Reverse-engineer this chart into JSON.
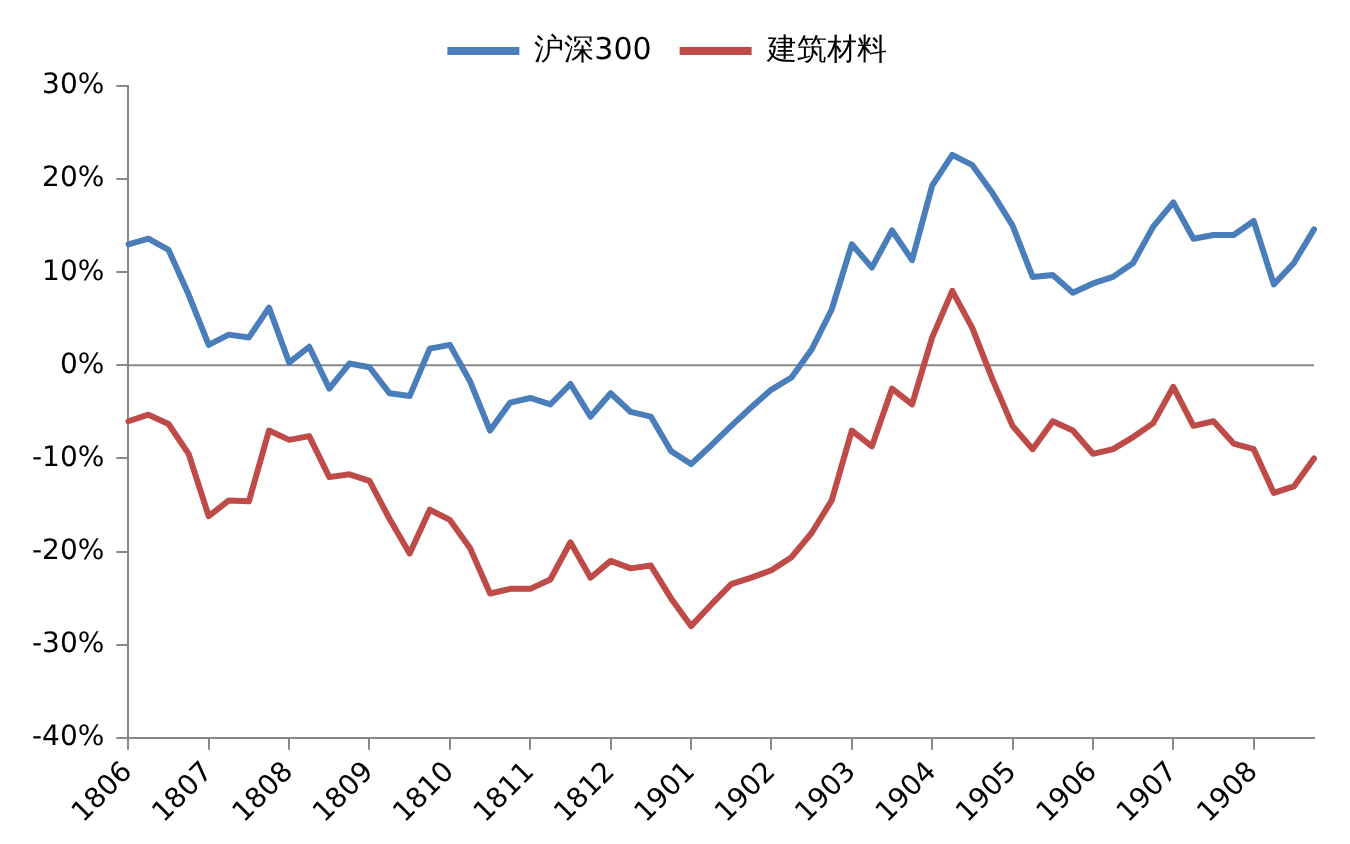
{
  "chart_data": {
    "type": "line",
    "categories": [
      "1806",
      null,
      null,
      null,
      "1807",
      null,
      null,
      null,
      "1808",
      null,
      null,
      null,
      "1809",
      null,
      null,
      null,
      "1810",
      null,
      null,
      null,
      "1811",
      null,
      null,
      null,
      "1812",
      null,
      null,
      null,
      "1901",
      null,
      null,
      null,
      "1902",
      null,
      null,
      null,
      "1903",
      null,
      null,
      null,
      "1904",
      null,
      null,
      null,
      "1905",
      null,
      null,
      null,
      "1906",
      null,
      null,
      null,
      "1907",
      null,
      null,
      null,
      "1908",
      null,
      null,
      null
    ],
    "series": [
      {
        "name": "沪深300",
        "color": "#4a7ebb",
        "values": [
          13,
          13.6,
          12.4,
          7.6,
          2.2,
          3.3,
          3.0,
          6.2,
          0.3,
          2.0,
          -2.5,
          0.2,
          -0.2,
          -3,
          -3.3,
          1.8,
          2.2,
          -1.7,
          -7,
          -4,
          -3.5,
          -4.2,
          -2,
          -5.5,
          -3,
          -5,
          -5.5,
          -9.2,
          -10.6,
          -8.6,
          -6.5,
          -4.5,
          -2.6,
          -1.3,
          1.7,
          6,
          13,
          10.5,
          14.5,
          11.3,
          19.3,
          22.6,
          21.5,
          18.5,
          15,
          9.5,
          9.7,
          7.8,
          8.8,
          9.5,
          11,
          14.9,
          17.5,
          13.6,
          14,
          14,
          15.5,
          8.7,
          11,
          14.6
        ]
      },
      {
        "name": "建筑材料",
        "color": "#be4b48",
        "values": [
          -6,
          -5.3,
          -6.3,
          -9.5,
          -16.2,
          -14.5,
          -14.6,
          -7,
          -8,
          -7.6,
          -12,
          -11.7,
          -12.4,
          -16.5,
          -20.2,
          -15.5,
          -16.6,
          -19.6,
          -24.5,
          -24,
          -24,
          -23,
          -19,
          -22.8,
          -21,
          -21.8,
          -21.5,
          -25,
          -28,
          -25.7,
          -23.5,
          -22.8,
          -22,
          -20.6,
          -18,
          -14.5,
          -7,
          -8.7,
          -2.5,
          -4.2,
          3,
          8,
          4,
          -1.5,
          -6.5,
          -9,
          -6,
          -7,
          -9.5,
          -9,
          -7.7,
          -6.2,
          -2.3,
          -6.5,
          -6,
          -8.4,
          -9,
          -13.7,
          -13,
          -10
        ]
      }
    ],
    "ylim": [
      -40,
      30
    ],
    "yticks": [
      {
        "value": -40,
        "label": "-40%"
      },
      {
        "value": -30,
        "label": "-30%"
      },
      {
        "value": -20,
        "label": "-20%"
      },
      {
        "value": -10,
        "label": "-10%"
      },
      {
        "value": 0,
        "label": "0%"
      },
      {
        "value": 10,
        "label": "10%"
      },
      {
        "value": 20,
        "label": "20%"
      },
      {
        "value": 30,
        "label": "30%"
      }
    ],
    "ref_lines": [
      {
        "axis": "y",
        "value": 0,
        "color": "#888888"
      }
    ],
    "grid": false,
    "legend": "top",
    "marker": "none",
    "line_style": "solid"
  }
}
